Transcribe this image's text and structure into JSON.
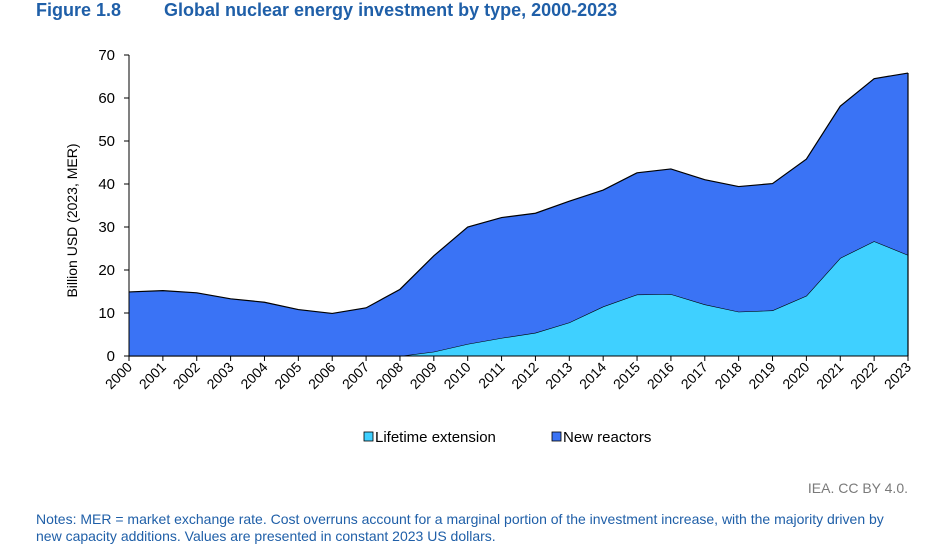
{
  "figure": {
    "number": "Figure 1.8",
    "title": "Global nuclear energy investment by type, 2000-2023"
  },
  "chart_data": {
    "type": "area",
    "stacked": true,
    "categories": [
      "2000",
      "2001",
      "2002",
      "2003",
      "2004",
      "2005",
      "2006",
      "2007",
      "2008",
      "2009",
      "2010",
      "2011",
      "2012",
      "2013",
      "2014",
      "2015",
      "2016",
      "2017",
      "2018",
      "2019",
      "2020",
      "2021",
      "2022",
      "2023"
    ],
    "series": [
      {
        "name": "Lifetime extension",
        "color": "#3fd0ff",
        "values": [
          0,
          0,
          0,
          0,
          0,
          0,
          0,
          0,
          0,
          1,
          2.8,
          4.2,
          5.4,
          7.8,
          11.5,
          14.3,
          14.4,
          12,
          10.3,
          10.6,
          14,
          22.8,
          26.7,
          23.5
        ]
      },
      {
        "name": "New reactors",
        "color": "#3a73f5",
        "values": [
          14.9,
          15.2,
          14.7,
          13.3,
          12.5,
          10.8,
          9.9,
          11.2,
          15.5,
          22.3,
          27.2,
          28,
          27.8,
          28.2,
          27.1,
          28.3,
          29.1,
          29,
          29.1,
          29.5,
          31.8,
          35.3,
          37.8,
          42.3
        ]
      }
    ],
    "ylabel": "Billion USD (2023, MER)",
    "ylim": [
      0,
      70
    ],
    "yticks": [
      "0",
      "10",
      "20",
      "30",
      "40",
      "50",
      "60",
      "70"
    ],
    "grid": false,
    "legend_position": "bottom"
  },
  "credit": "IEA. CC BY 4.0.",
  "notes": "Notes: MER = market exchange rate. Cost overruns account for a marginal portion of the investment increase, with the majority driven by new capacity additions. Values are presented in constant 2023 US dollars."
}
